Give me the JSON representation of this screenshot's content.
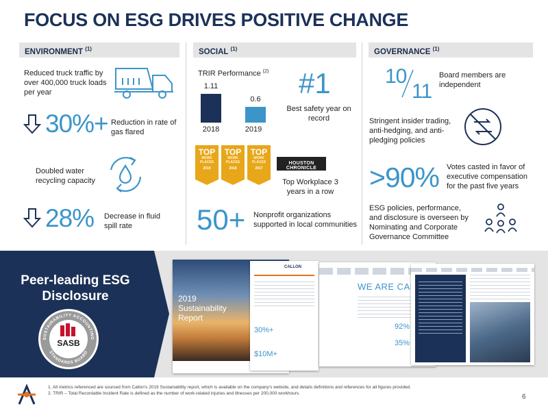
{
  "title": "FOCUS ON ESG DRIVES POSITIVE CHANGE",
  "columns": {
    "environment": {
      "label": "ENVIRONMENT",
      "note": "(1)"
    },
    "social": {
      "label": "SOCIAL",
      "note": "(1)"
    },
    "governance": {
      "label": "GOVERNANCE",
      "note": "(1)"
    }
  },
  "environment": {
    "truck_text": "Reduced truck traffic by over 400,000 truck loads per year",
    "flared_value": "30%+",
    "flared_text": "Reduction in rate of gas flared",
    "water_text": "Doubled water recycling capacity",
    "spill_value": "28%",
    "spill_text": "Decrease in fluid spill rate"
  },
  "social": {
    "trir_title": "TRIR Performance",
    "trir_note": "(2)",
    "chart_data": {
      "type": "bar",
      "title": "TRIR Performance",
      "categories": [
        "2018",
        "2019"
      ],
      "values": [
        1.11,
        0.6
      ],
      "value_labels": [
        "1.11",
        "0.6"
      ],
      "colors": [
        "#1c3157",
        "#3b95c9"
      ]
    },
    "rank_value": "#1",
    "rank_text": "Best safety year on record",
    "badges": [
      {
        "l1": "TOP",
        "l2": "WORK PLACES",
        "year": "2019"
      },
      {
        "l1": "TOP",
        "l2": "WORK PLACES",
        "year": "2018"
      },
      {
        "l1": "TOP",
        "l2": "WORK PLACES",
        "year": "2017"
      }
    ],
    "houston_label": "HOUSTON CHRONICLE",
    "workplace_text": "Top Workplace 3 years in a row",
    "nonprofit_value": "50+",
    "nonprofit_text": "Nonprofit organizations supported in local communities"
  },
  "governance": {
    "board_num": "10",
    "board_den": "11",
    "board_text": "Board members are independent",
    "insider_text": "Stringent insider trading, anti-hedging, and anti-pledging policies",
    "votes_value": ">90%",
    "votes_text": "Votes casted in favor of executive compensation for the past five years",
    "esg_text": "ESG policies, performance, and disclosure is overseen by Nominating and Corporate Governance Committee"
  },
  "bottom": {
    "peer_title": "Peer-leading ESG Disclosure",
    "sasb_inner": "SASB",
    "sasb_ring_top": "SUSTAINABILITY ACCOUNTING",
    "sasb_ring_bottom": "STANDARDS BOARD",
    "report_title": "2019 Sustainability Report",
    "report_logo": "CALLON",
    "report_banner": "WE ARE CALLON",
    "report_stats": [
      "30%+",
      "$10M+",
      "92%",
      "35%"
    ]
  },
  "footnotes": [
    "1.   All metrics referenced are sourced from Callon's 2019 Sustainability report, which is available on the company's website, and details definitions and references for all figures provided.",
    "2.   TRIR – Total Recordable Incident Rate is defined as the number of work-related injuries and illnesses per 200,000 workhours."
  ],
  "page_number": "6",
  "colors": {
    "navy": "#1c3157",
    "blue": "#3b95c9",
    "gold": "#e8a619",
    "logo_orange": "#e37222"
  }
}
